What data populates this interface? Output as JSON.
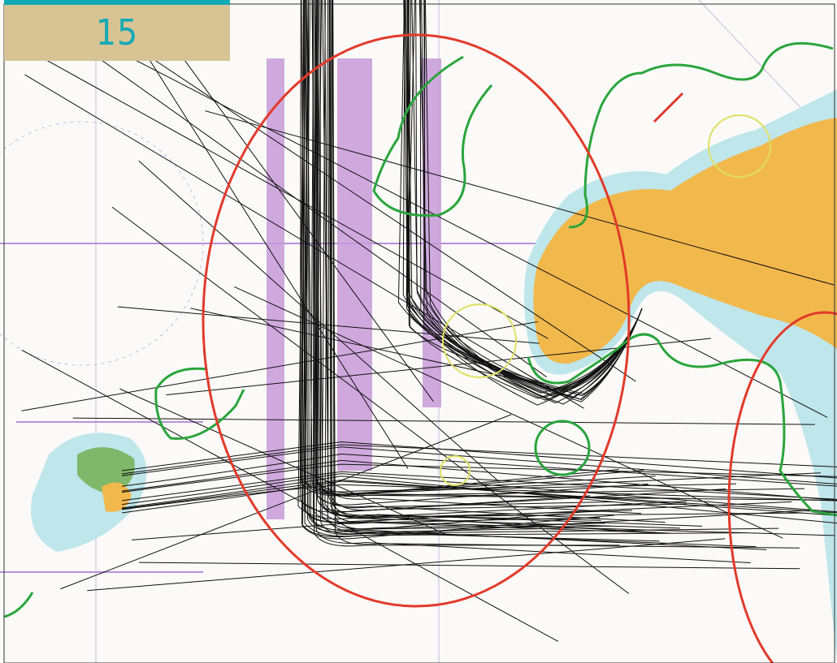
{
  "label": "15"
}
